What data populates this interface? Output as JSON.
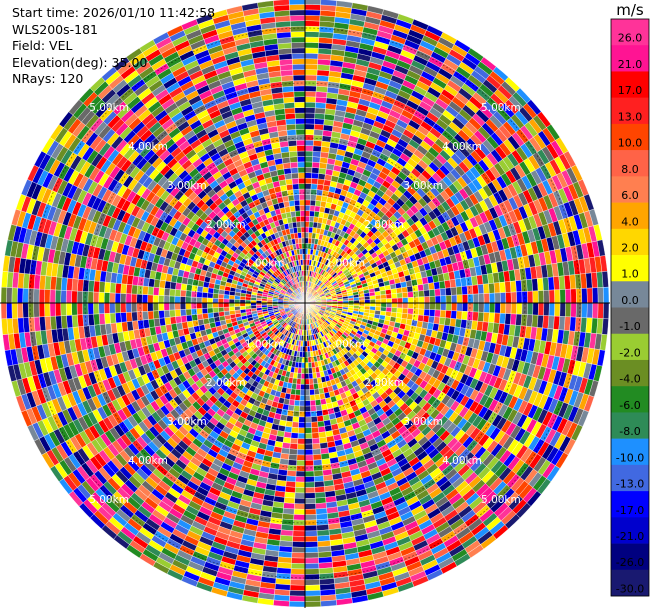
{
  "info": {
    "start_time": "Start time: 2026/01/10 11:42:58",
    "instrument": "WLS200s-181",
    "field": "Field: VEL",
    "elevation": "Elevation(deg): 35.00",
    "nrays": "NRays: 120"
  },
  "chart_data": {
    "type": "heatmap",
    "projection": "polar-ppi",
    "field": "VEL",
    "n_rays": 120,
    "elevation_deg": 35.0,
    "range_rings": [
      {
        "label": "1.00km"
      },
      {
        "label": "2.00km"
      },
      {
        "label": "3.00km"
      },
      {
        "label": "4.00km"
      },
      {
        "label": "5.00km"
      }
    ],
    "colorbar": {
      "unit": "m/s",
      "tick_labels": [
        "26.0",
        "21.0",
        "17.0",
        "13.0",
        "10.0",
        "8.0",
        "6.0",
        "4.0",
        "2.0",
        "1.0",
        "0.0",
        "-1.0",
        "-2.0",
        "-4.0",
        "-6.0",
        "-8.0",
        "-10.0",
        "-13.0",
        "-17.0",
        "-21.0",
        "-26.0",
        "-30.0"
      ],
      "colors": [
        "#ff3399",
        "#ff1493",
        "#ff0000",
        "#ff2020",
        "#ff4500",
        "#ff6347",
        "#ff7f50",
        "#ffa500",
        "#ffd700",
        "#ffff00",
        "#778899",
        "#696969",
        "#9acd32",
        "#6b8e23",
        "#228b22",
        "#2e8b57",
        "#1e90ff",
        "#4169e1",
        "#0000ff",
        "#0000cd",
        "#000080",
        "#191970"
      ]
    }
  }
}
